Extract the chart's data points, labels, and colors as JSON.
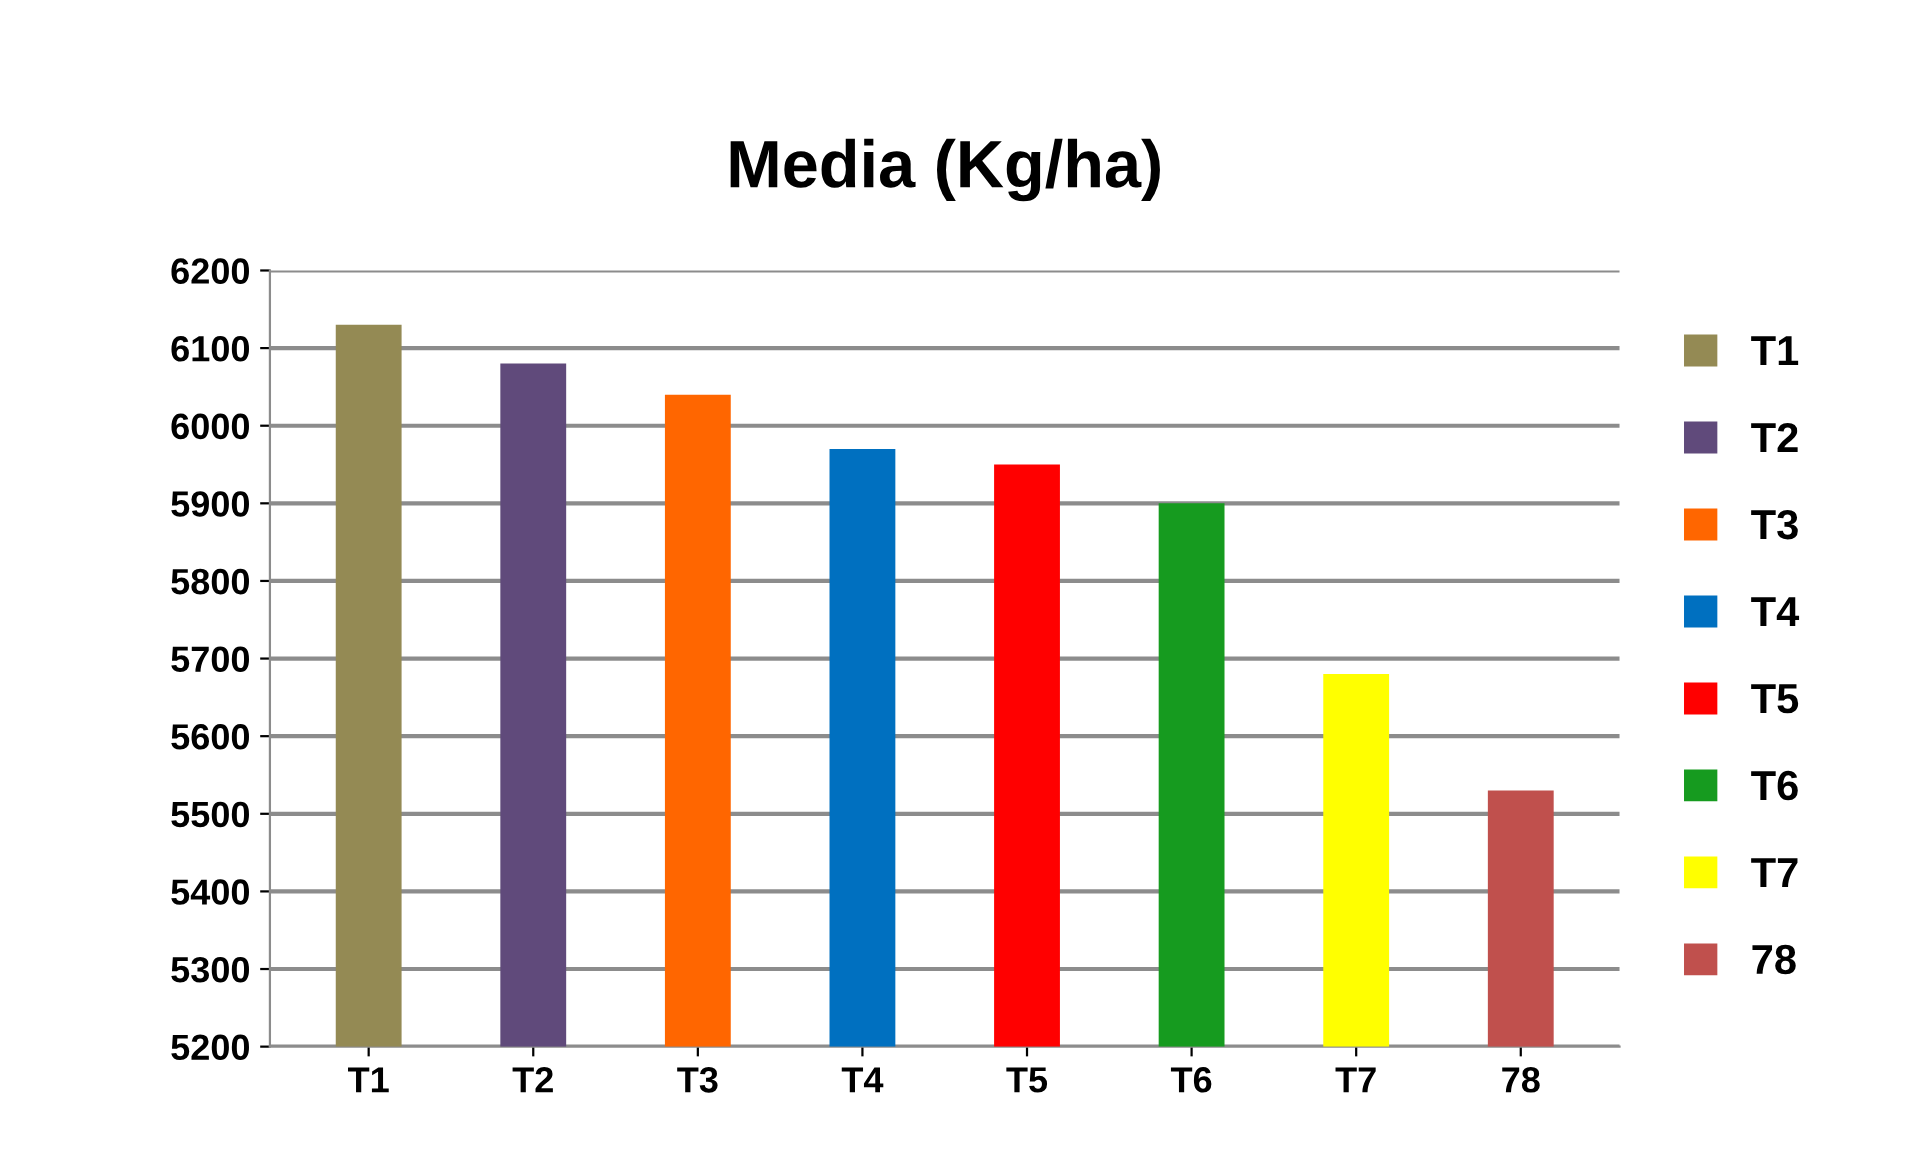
{
  "chart_data": {
    "type": "bar",
    "title": "Media (Kg/ha)",
    "stacked": true,
    "categories": [
      "T1",
      "T2",
      "T3",
      "T4",
      "T5",
      "T6",
      "T7",
      "78"
    ],
    "series": [
      {
        "name": "T1",
        "color": "#948a54",
        "values": [
          6130,
          null,
          null,
          null,
          null,
          null,
          null,
          null
        ]
      },
      {
        "name": "T2",
        "color": "#604a7b",
        "values": [
          null,
          6080,
          null,
          null,
          null,
          null,
          null,
          null
        ]
      },
      {
        "name": "T3",
        "color": "#ff6600",
        "values": [
          null,
          null,
          6040,
          null,
          null,
          null,
          null,
          null
        ]
      },
      {
        "name": "T4",
        "color": "#0070c0",
        "values": [
          null,
          null,
          null,
          5970,
          null,
          null,
          null,
          null
        ]
      },
      {
        "name": "T5",
        "color": "#ff0000",
        "values": [
          null,
          null,
          null,
          null,
          5950,
          null,
          null,
          null
        ]
      },
      {
        "name": "T6",
        "color": "#169b1f",
        "values": [
          null,
          null,
          null,
          null,
          null,
          5900,
          null,
          null
        ]
      },
      {
        "name": "T7",
        "color": "#ffff00",
        "values": [
          null,
          null,
          null,
          null,
          null,
          null,
          5680,
          null
        ]
      },
      {
        "name": "78",
        "color": "#c0504d",
        "values": [
          null,
          null,
          null,
          null,
          null,
          null,
          null,
          5530
        ]
      }
    ],
    "ylim": [
      5200,
      6200
    ],
    "yticks": [
      5200,
      5300,
      5400,
      5500,
      5600,
      5700,
      5800,
      5900,
      6000,
      6100,
      6200
    ],
    "grid": "y",
    "legend": "right"
  }
}
